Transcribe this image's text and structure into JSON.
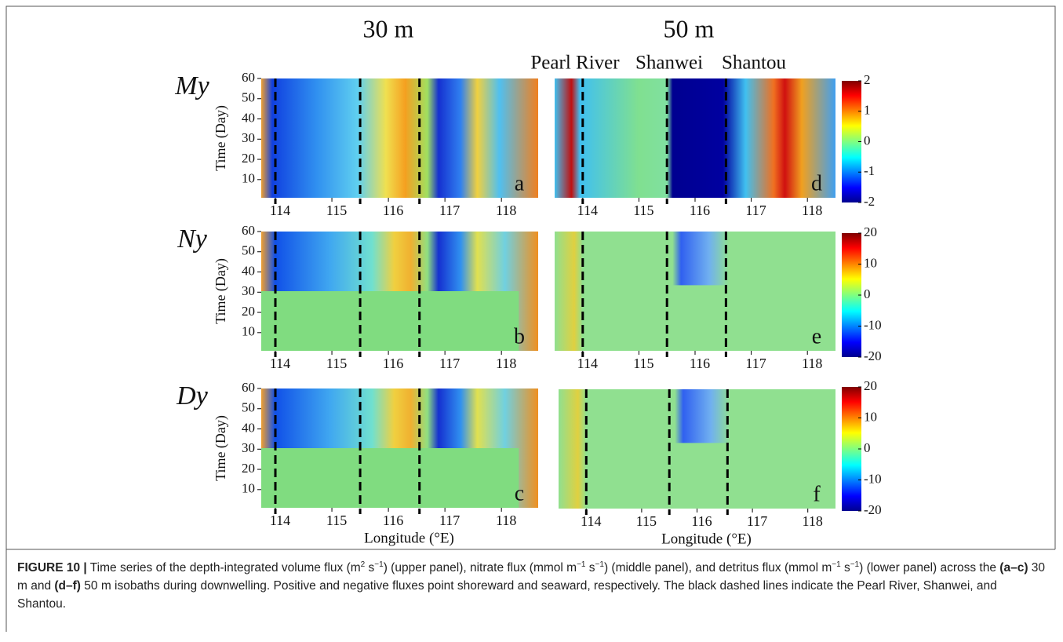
{
  "column_titles": [
    "30 m",
    "50 m"
  ],
  "site_labels": [
    "Pearl River",
    "Shanwei",
    "Shantou"
  ],
  "chart_data": [
    {
      "type": "heatmap",
      "panel_label": "a",
      "row_label": "My",
      "ylabel": "Time (Day)",
      "xlim": [
        113.75,
        118.65
      ],
      "xticks": [
        114,
        115,
        116,
        117,
        118
      ],
      "ylim": [
        1,
        60
      ],
      "yticks": [
        10,
        20,
        30,
        40,
        50,
        60
      ],
      "dashed_lines": [
        114,
        115.5,
        116.55
      ]
    },
    {
      "type": "heatmap",
      "panel_label": "b",
      "row_label": "Ny",
      "ylabel": "Time (Day)",
      "xlim": [
        113.75,
        118.65
      ],
      "xticks": [
        114,
        115,
        116,
        117,
        118
      ],
      "ylim": [
        1,
        60
      ],
      "yticks": [
        10,
        20,
        30,
        40,
        50,
        60
      ],
      "dashed_lines": [
        114,
        115.5,
        116.55
      ]
    },
    {
      "type": "heatmap",
      "panel_label": "c",
      "row_label": "Dy",
      "ylabel": "Time (Day)",
      "xlabel": "Longitude (°E)",
      "xlim": [
        113.75,
        118.65
      ],
      "xticks": [
        114,
        115,
        116,
        117,
        118
      ],
      "ylim": [
        1,
        60
      ],
      "yticks": [
        10,
        20,
        30,
        40,
        50,
        60
      ],
      "dashed_lines": [
        114,
        115.5,
        116.55
      ]
    },
    {
      "type": "heatmap",
      "panel_label": "d",
      "xlim": [
        113.5,
        118.5
      ],
      "xticks": [
        114,
        115,
        116,
        117,
        118
      ],
      "ylim": [
        1,
        60
      ],
      "dashed_lines": [
        114,
        115.5,
        116.55
      ],
      "clim": [
        -2,
        2
      ],
      "cticks": [
        -2,
        -1,
        0,
        1,
        2
      ]
    },
    {
      "type": "heatmap",
      "panel_label": "e",
      "xlim": [
        113.5,
        118.5
      ],
      "xticks": [
        114,
        115,
        116,
        117,
        118
      ],
      "ylim": [
        1,
        60
      ],
      "dashed_lines": [
        114,
        115.5,
        116.55
      ],
      "clim": [
        -20,
        20
      ],
      "cticks": [
        -20,
        -10,
        0,
        10,
        20
      ]
    },
    {
      "type": "heatmap",
      "panel_label": "f",
      "xlabel": "Longitude (°E)",
      "xlim": [
        113.5,
        118.5
      ],
      "xticks": [
        114,
        115,
        116,
        117,
        118
      ],
      "ylim": [
        1,
        60
      ],
      "dashed_lines": [
        114,
        115.5,
        116.55
      ],
      "clim": [
        -20,
        20
      ],
      "cticks": [
        -20,
        -10,
        0,
        10,
        20
      ]
    }
  ],
  "caption": {
    "segments": [
      "FIGURE 10 |",
      " Time series of the depth-integrated volume flux (m",
      "2",
      " s",
      "−1",
      ") (upper panel), nitrate flux (mmol m",
      "−1",
      " s",
      "−1",
      ") (middle panel), and detritus flux (mmol m",
      "−1",
      " s",
      "−1",
      ") (lower panel) across the ",
      "(a–c)",
      " 30 m and ",
      "(d–f)",
      " 50 m isobaths during downwelling. Positive and negative fluxes point shoreward and seaward, respectively. The black dashed lines indicate the Pearl River, Shanwei, and Shantou."
    ]
  }
}
